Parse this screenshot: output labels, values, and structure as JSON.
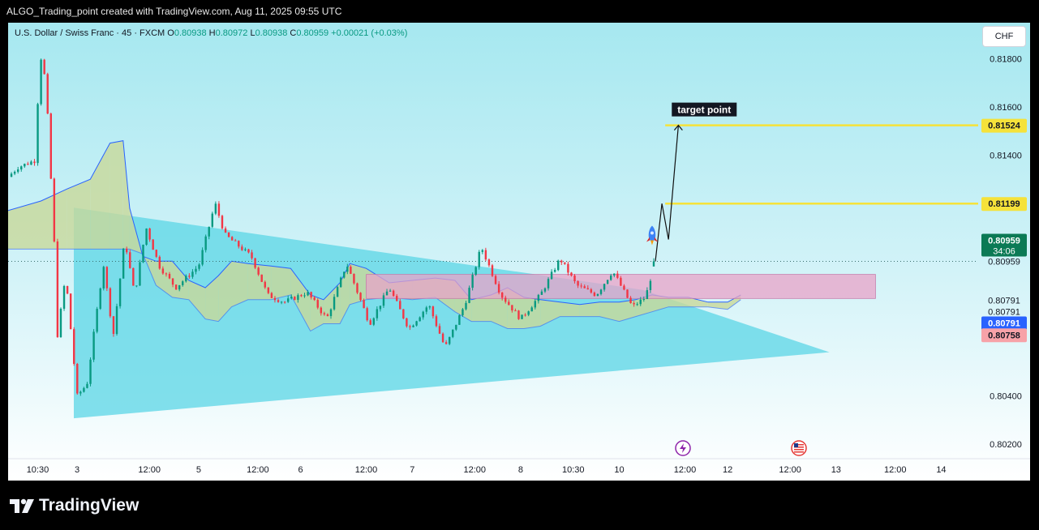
{
  "header": {
    "title": "ALGO_Trading_point created with TradingView.com, Aug 11, 2025 09:55 UTC"
  },
  "legend": {
    "symbol": "U.S. Dollar / Swiss Franc · 45 · FXCM",
    "open_label": "O",
    "open": "0.80938",
    "high_label": "H",
    "high": "0.80972",
    "low_label": "L",
    "low": "0.80938",
    "close_label": "C",
    "close": "0.80959",
    "change": "+0.00021 (+0.03%)"
  },
  "toolbar": {
    "currency": "CHF"
  },
  "footer": {
    "brand": "TradingView"
  },
  "colors": {
    "up": "#089981",
    "down": "#f23645",
    "triangle": "#5bd6e6",
    "zone": "#e8a3c8",
    "target_line": "#f5e23a",
    "cloud_line": "#2962ff"
  },
  "chart_data": {
    "type": "candlestick",
    "title": "U.S. Dollar / Swiss Franc",
    "timeframe": "45",
    "xlabel": "",
    "ylabel": "",
    "ylim": [
      0.8014,
      0.8195
    ],
    "y_ticks": [
      "0.81800",
      "0.81600",
      "0.81400",
      "0.80400",
      "0.80200"
    ],
    "x_ticks": [
      {
        "label": "10:30",
        "t": 0.9
      },
      {
        "label": "3",
        "t": 2.1
      },
      {
        "label": "12:00",
        "t": 4.3
      },
      {
        "label": "5",
        "t": 5.8
      },
      {
        "label": "12:00",
        "t": 7.6
      },
      {
        "label": "6",
        "t": 8.9
      },
      {
        "label": "12:00",
        "t": 10.9
      },
      {
        "label": "7",
        "t": 12.3
      },
      {
        "label": "12:00",
        "t": 14.2
      },
      {
        "label": "8",
        "t": 15.6
      },
      {
        "label": "10:30",
        "t": 17.2
      },
      {
        "label": "10",
        "t": 18.6
      },
      {
        "label": "12:00",
        "t": 20.6
      },
      {
        "label": "12",
        "t": 21.9
      },
      {
        "label": "12:00",
        "t": 23.8
      },
      {
        "label": "13",
        "t": 25.2
      },
      {
        "label": "12:00",
        "t": 27.0
      },
      {
        "label": "14",
        "t": 28.4
      }
    ],
    "price_labels": [
      {
        "value": "0.81524",
        "style": "yellow"
      },
      {
        "value": "0.81199",
        "style": "yellow"
      },
      {
        "value": "0.80959",
        "style": "green",
        "sub": "34:06"
      },
      {
        "value": "0.80959",
        "style": "plain"
      },
      {
        "value": "0.80791",
        "style": "plain"
      },
      {
        "value": "0.80791",
        "style": "plain"
      },
      {
        "value": "0.80791",
        "style": "blue"
      },
      {
        "value": "0.80758",
        "style": "red"
      }
    ],
    "current_price": 0.80959,
    "last_candle": {
      "open": 0.80938,
      "high": 0.80972,
      "low": 0.80938,
      "close": 0.80959
    },
    "target_lines": [
      0.81524,
      0.81199
    ],
    "annotations": [
      "target point"
    ],
    "triangle": {
      "upper": [
        [
          2.0,
          0.81182
        ],
        [
          19.3,
          0.80841
        ]
      ],
      "lower": [
        [
          2.0,
          0.80308
        ],
        [
          25.0,
          0.80582
        ]
      ]
    },
    "resistance_zone": {
      "t_start": 10.9,
      "t_end": 26.4,
      "low": 0.80805,
      "high": 0.80905
    },
    "projection_path": [
      [
        19.7,
        0.80959
      ],
      [
        19.9,
        0.81199
      ],
      [
        20.1,
        0.8105
      ],
      [
        20.4,
        0.81524
      ]
    ],
    "cloud": {
      "span_a": [
        [
          0.0,
          0.8117
        ],
        [
          1.0,
          0.8121
        ],
        [
          1.8,
          0.8126
        ],
        [
          2.5,
          0.813
        ],
        [
          3.1,
          0.8145
        ],
        [
          3.5,
          0.8146
        ],
        [
          3.7,
          0.8118
        ],
        [
          4.1,
          0.8098
        ],
        [
          4.5,
          0.8096
        ],
        [
          5.0,
          0.8096
        ],
        [
          5.5,
          0.8088
        ],
        [
          6.0,
          0.8085
        ],
        [
          6.4,
          0.809
        ],
        [
          6.8,
          0.8096
        ],
        [
          7.3,
          0.8095
        ],
        [
          8.0,
          0.8094
        ],
        [
          8.6,
          0.8093
        ],
        [
          9.2,
          0.8082
        ],
        [
          9.6,
          0.808
        ],
        [
          10.1,
          0.8087
        ],
        [
          10.4,
          0.8095
        ],
        [
          10.9,
          0.8093
        ],
        [
          11.6,
          0.8087
        ],
        [
          12.3,
          0.8088
        ],
        [
          13.0,
          0.8089
        ],
        [
          13.6,
          0.8088
        ],
        [
          14.1,
          0.808
        ],
        [
          14.7,
          0.8082
        ],
        [
          15.2,
          0.8085
        ],
        [
          15.7,
          0.8081
        ],
        [
          16.2,
          0.808
        ],
        [
          16.8,
          0.8079
        ],
        [
          17.4,
          0.8078
        ],
        [
          18.0,
          0.8079
        ],
        [
          18.6,
          0.8079
        ],
        [
          19.1,
          0.808
        ],
        [
          19.6,
          0.8082
        ],
        [
          20.1,
          0.8081
        ],
        [
          20.7,
          0.8081
        ],
        [
          21.3,
          0.8079
        ],
        [
          21.9,
          0.8079
        ],
        [
          22.3,
          0.8082
        ]
      ],
      "span_b": [
        [
          0.0,
          0.8101
        ],
        [
          1.0,
          0.8101
        ],
        [
          1.8,
          0.8101
        ],
        [
          2.5,
          0.8101
        ],
        [
          3.1,
          0.8101
        ],
        [
          3.5,
          0.8101
        ],
        [
          3.7,
          0.8101
        ],
        [
          4.1,
          0.8099
        ],
        [
          4.5,
          0.8086
        ],
        [
          5.0,
          0.8081
        ],
        [
          5.5,
          0.808
        ],
        [
          6.0,
          0.8072
        ],
        [
          6.4,
          0.8071
        ],
        [
          6.8,
          0.8077
        ],
        [
          7.3,
          0.808
        ],
        [
          8.0,
          0.808
        ],
        [
          8.6,
          0.8082
        ],
        [
          9.2,
          0.8067
        ],
        [
          9.6,
          0.807
        ],
        [
          10.1,
          0.807
        ],
        [
          10.4,
          0.8078
        ],
        [
          10.9,
          0.808
        ],
        [
          11.6,
          0.8081
        ],
        [
          12.3,
          0.808
        ],
        [
          13.0,
          0.8081
        ],
        [
          13.6,
          0.8075
        ],
        [
          14.1,
          0.8071
        ],
        [
          14.7,
          0.8071
        ],
        [
          15.2,
          0.8068
        ],
        [
          15.7,
          0.8068
        ],
        [
          16.2,
          0.8069
        ],
        [
          16.8,
          0.8073
        ],
        [
          17.4,
          0.8073
        ],
        [
          18.0,
          0.8073
        ],
        [
          18.6,
          0.8071
        ],
        [
          19.1,
          0.8073
        ],
        [
          19.6,
          0.8075
        ],
        [
          20.1,
          0.8077
        ],
        [
          20.7,
          0.8077
        ],
        [
          21.3,
          0.8077
        ],
        [
          21.9,
          0.8076
        ],
        [
          22.3,
          0.808
        ]
      ]
    }
  }
}
